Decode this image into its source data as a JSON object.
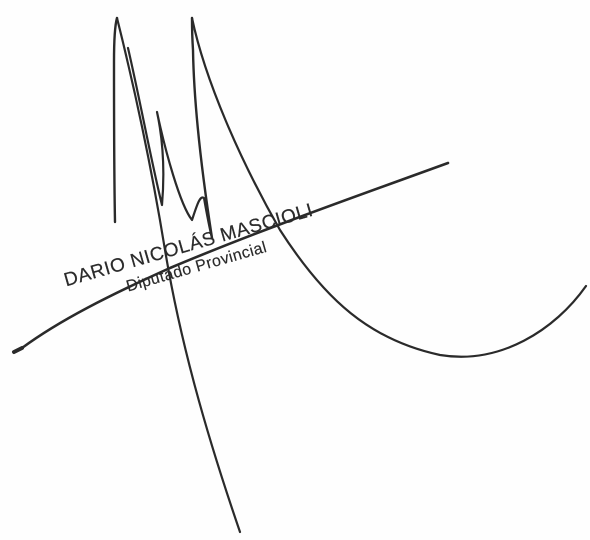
{
  "stamp": {
    "name": "DARIO NICOLÁS MASCIOLI",
    "title": "Diputado Provincial"
  },
  "colors": {
    "ink": "#2a2a2a",
    "paper": "#fefefe"
  }
}
